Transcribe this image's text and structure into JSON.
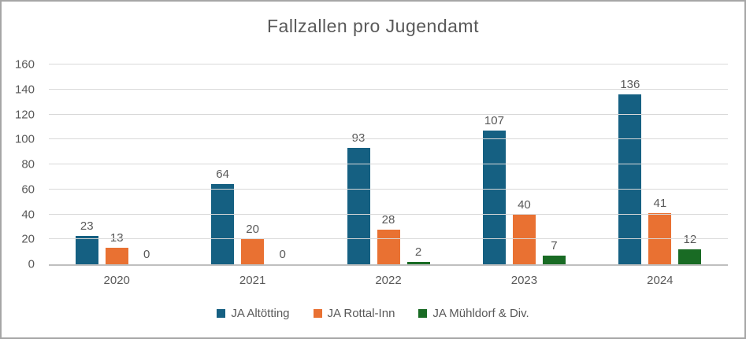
{
  "chart_data": {
    "type": "bar",
    "title": "Fallzallen pro Jugendamt",
    "categories": [
      "2020",
      "2021",
      "2022",
      "2023",
      "2024"
    ],
    "series": [
      {
        "name": "JA Altötting",
        "color": "#156082",
        "values": [
          23,
          64,
          93,
          107,
          136
        ]
      },
      {
        "name": "JA Rottal-Inn",
        "color": "#e97132",
        "values": [
          13,
          20,
          28,
          40,
          41
        ]
      },
      {
        "name": "JA Mühldorf & Div.",
        "color": "#196b24",
        "values": [
          0,
          0,
          2,
          7,
          12
        ]
      }
    ],
    "ylim": [
      0,
      160
    ],
    "yticks": [
      0,
      20,
      40,
      60,
      80,
      100,
      120,
      140,
      160
    ],
    "grid": true,
    "legend_position": "bottom",
    "data_labels": true
  },
  "colors": {
    "frame_border": "#a6a6a6",
    "gridline": "#d9d9d9",
    "axis_line": "#bfbfbf",
    "text": "#595959",
    "background": "#ffffff"
  }
}
